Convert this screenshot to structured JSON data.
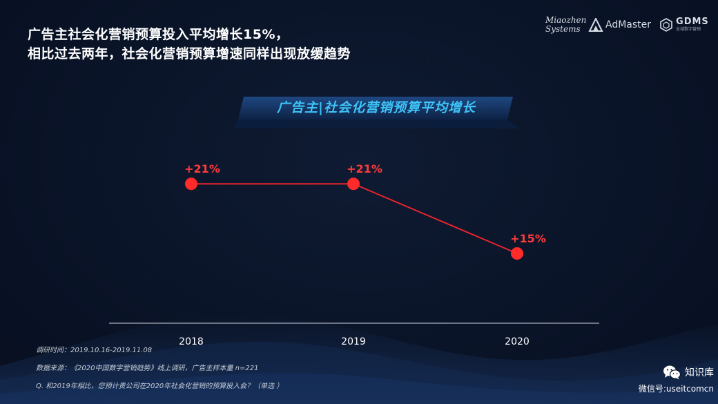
{
  "headline": {
    "line1": "广告主社会化营销预算投入平均增长15%，",
    "line2": "相比过去两年，社会化营销预算增速同样出现放缓趋势"
  },
  "logos": {
    "miaozhen_line1": "Miaozhen",
    "miaozhen_line2": "Systems",
    "admaster": "AdMaster",
    "gdms": "GDMS",
    "gdms_sub": "全域数字营销"
  },
  "chart_data": {
    "type": "line",
    "title": "广告主|社会化营销预算平均增长",
    "categories": [
      "2018",
      "2019",
      "2020"
    ],
    "values": [
      21,
      21,
      15
    ],
    "data_labels": [
      "+21%",
      "+21%",
      "+15%"
    ],
    "line_color": "#e8242c",
    "marker_color": "#ff2a2a",
    "label_color": "#ff3b3b",
    "ylim": [
      10,
      25
    ],
    "xlabel": "",
    "ylabel": "",
    "grid": false,
    "legend": "none"
  },
  "notes": {
    "survey_time": "调研时间：2019.10.16-2019.11.08",
    "source": "数据来源：《2020中国数字营销趋势》线上调研，广告主样本量 n=221",
    "question": "Q. 和2019年相比，您预计贵公司在2020年社会化营销的预算投入会？（单选 ）"
  },
  "wechat": {
    "name": "知识库",
    "id": "微信号:useitcomcn",
    "icon": "wechat-icon"
  },
  "colors": {
    "background": "#0a1428",
    "banner_text": "#3fc3f7",
    "axis": "#cfd6e2"
  }
}
